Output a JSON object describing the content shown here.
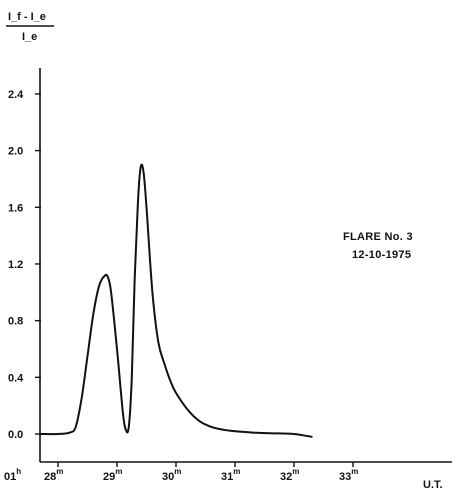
{
  "chart_data": {
    "type": "line",
    "ylabel_numerator": "I_f - I_e",
    "ylabel_denominator": "I_e",
    "xlabel": "U.T.",
    "annotation": [
      "FLARE No. 3",
      "12-10-1975"
    ],
    "y_ticks": [
      "0.0",
      "0.4",
      "0.8",
      "1.2",
      "1.6",
      "2.0",
      "2.4"
    ],
    "ylim": [
      0,
      2.6
    ],
    "x_ticks": [
      {
        "value": 28,
        "label": "28",
        "sup": "m",
        "prefix": "01",
        "prefix_sup": "h"
      },
      {
        "value": 29,
        "label": "29",
        "sup": "m"
      },
      {
        "value": 30,
        "label": "30",
        "sup": "m"
      },
      {
        "value": 31,
        "label": "31",
        "sup": "m"
      },
      {
        "value": 32,
        "label": "32",
        "sup": "m"
      },
      {
        "value": 33,
        "label": "33",
        "sup": "m"
      }
    ],
    "xlim": [
      27.6,
      34.2
    ],
    "series": [
      {
        "x": [
          27.7,
          28.0,
          28.2,
          28.3,
          28.4,
          28.5,
          28.6,
          28.7,
          28.8,
          28.85,
          28.9,
          29.0,
          29.1,
          29.15,
          29.2,
          29.25,
          29.3,
          29.35,
          29.4,
          29.45,
          29.5,
          29.6,
          29.7,
          29.8,
          29.9,
          30.0,
          30.2,
          30.4,
          30.6,
          30.8,
          31.0,
          31.3,
          31.6,
          32.0,
          32.3
        ],
        "y": [
          0.0,
          0.0,
          0.01,
          0.05,
          0.25,
          0.55,
          0.85,
          1.05,
          1.12,
          1.1,
          1.0,
          0.6,
          0.15,
          0.03,
          0.05,
          0.4,
          1.1,
          1.6,
          1.88,
          1.85,
          1.6,
          1.0,
          0.65,
          0.5,
          0.38,
          0.29,
          0.17,
          0.09,
          0.05,
          0.03,
          0.02,
          0.01,
          0.005,
          0.0,
          -0.02
        ]
      }
    ]
  }
}
